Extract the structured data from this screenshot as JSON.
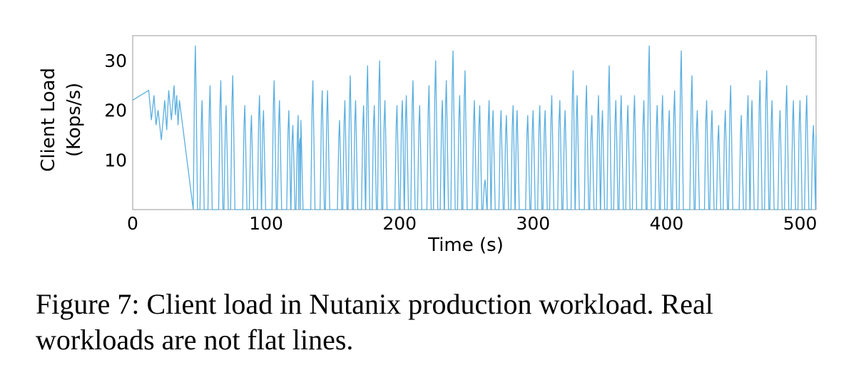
{
  "chart_data": {
    "type": "line",
    "xlabel": "Time (s)",
    "ylabel": [
      "Client Load",
      "(Kops/s)"
    ],
    "xlim": [
      0,
      512
    ],
    "ylim": [
      0,
      35
    ],
    "xticks": [
      0,
      100,
      200,
      300,
      400,
      500
    ],
    "yticks": [
      10,
      20,
      30
    ],
    "grid": false,
    "series": [
      {
        "color": "#5aafe0",
        "peak_times": [
          12,
          16,
          19,
          24,
          27,
          31,
          33,
          35,
          47,
          52,
          58,
          66,
          70,
          75,
          84,
          89,
          95,
          98,
          106,
          110,
          117,
          120,
          124,
          126,
          135,
          142,
          146,
          155,
          159,
          163,
          167,
          173,
          176,
          181,
          185,
          189,
          198,
          202,
          205,
          210,
          215,
          222,
          227,
          232,
          235,
          240,
          245,
          249,
          256,
          260,
          264,
          267,
          270,
          276,
          280,
          285,
          288,
          296,
          300,
          305,
          309,
          314,
          320,
          324,
          330,
          333,
          340,
          344,
          349,
          352,
          357,
          362,
          366,
          371,
          376,
          383,
          387,
          393,
          397,
          402,
          406,
          411,
          419,
          423,
          430,
          434,
          439,
          444,
          448,
          456,
          461,
          464,
          470,
          475,
          479,
          485,
          490,
          495,
          500,
          505,
          510
        ],
        "peak_values": [
          24,
          23,
          20,
          22,
          24,
          25,
          23,
          22,
          33,
          22,
          25,
          26,
          21,
          27,
          21,
          19,
          23,
          20,
          26,
          22,
          20,
          17,
          19,
          18,
          26,
          24,
          24,
          18,
          22,
          27,
          22,
          21,
          29,
          21,
          30,
          22,
          21,
          22,
          23,
          26,
          21,
          25,
          30,
          22,
          26,
          32,
          23,
          28,
          22,
          21,
          6,
          22,
          20,
          20,
          19,
          21,
          20,
          19,
          20,
          21,
          20,
          23,
          22,
          20,
          28,
          23,
          25,
          19,
          23,
          20,
          29,
          22,
          23,
          21,
          23,
          22,
          33,
          21,
          23,
          20,
          24,
          32,
          27,
          20,
          22,
          20,
          17,
          20,
          25,
          19,
          23,
          22,
          26,
          28,
          22,
          20,
          25,
          22,
          22,
          23,
          17
        ],
        "trough_value": 0
      }
    ]
  },
  "caption": "Figure 7: Client load in Nutanix production workload. Real workloads are not flat lines."
}
